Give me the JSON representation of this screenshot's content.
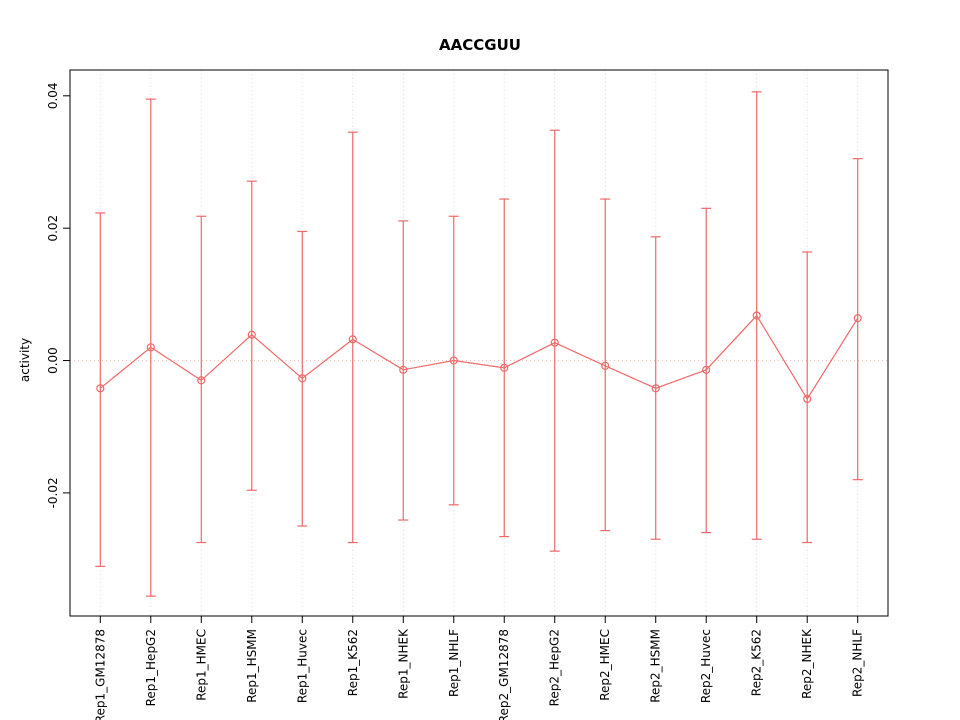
{
  "chart_data": {
    "type": "line",
    "title": "AACCGUU",
    "ylabel": "activity",
    "xlabel": "",
    "categories": [
      "Rep1_GM12878",
      "Rep1_HepG2",
      "Rep1_HMEC",
      "Rep1_HSMM",
      "Rep1_Huvec",
      "Rep1_K562",
      "Rep1_NHEK",
      "Rep1_NHLF",
      "Rep2_GM12878",
      "Rep2_HepG2",
      "Rep2_HMEC",
      "Rep2_HSMM",
      "Rep2_Huvec",
      "Rep2_K562",
      "Rep2_NHEK",
      "Rep2_NHLF"
    ],
    "series": [
      {
        "name": "activity",
        "values": [
          -0.0042,
          0.002,
          -0.003,
          0.0039,
          -0.0027,
          0.0032,
          -0.0014,
          0.0,
          -0.0011,
          0.0027,
          -0.0008,
          -0.0042,
          -0.0014,
          0.0068,
          -0.0058,
          0.0064
        ],
        "upper": [
          0.0223,
          0.0395,
          0.0218,
          0.0271,
          0.0195,
          0.0345,
          0.0211,
          0.0218,
          0.0244,
          0.0348,
          0.0244,
          0.0187,
          0.023,
          0.0406,
          0.0164,
          0.0305
        ],
        "lower": [
          -0.0311,
          -0.0356,
          -0.0275,
          -0.0196,
          -0.025,
          -0.0275,
          -0.0241,
          -0.0218,
          -0.0266,
          -0.0288,
          -0.0257,
          -0.027,
          -0.026,
          -0.027,
          -0.0275,
          -0.018
        ]
      }
    ],
    "ylim": [
      -0.0386,
      0.0439
    ],
    "yticks": [
      {
        "value": -0.02,
        "label": "-0.02"
      },
      {
        "value": 0.0,
        "label": "0.00"
      },
      {
        "value": 0.02,
        "label": "0.02"
      },
      {
        "value": 0.04,
        "label": "0.04"
      }
    ],
    "legend": "none",
    "grid": "vertical-dotted",
    "zero_line": true,
    "marker": "open-circle",
    "colors": {
      "series": "#ee6a6a",
      "grid": "#d9d9d9",
      "zero_line": "#ffb9b9",
      "axis": "#000000",
      "background": "#ffffff"
    }
  }
}
